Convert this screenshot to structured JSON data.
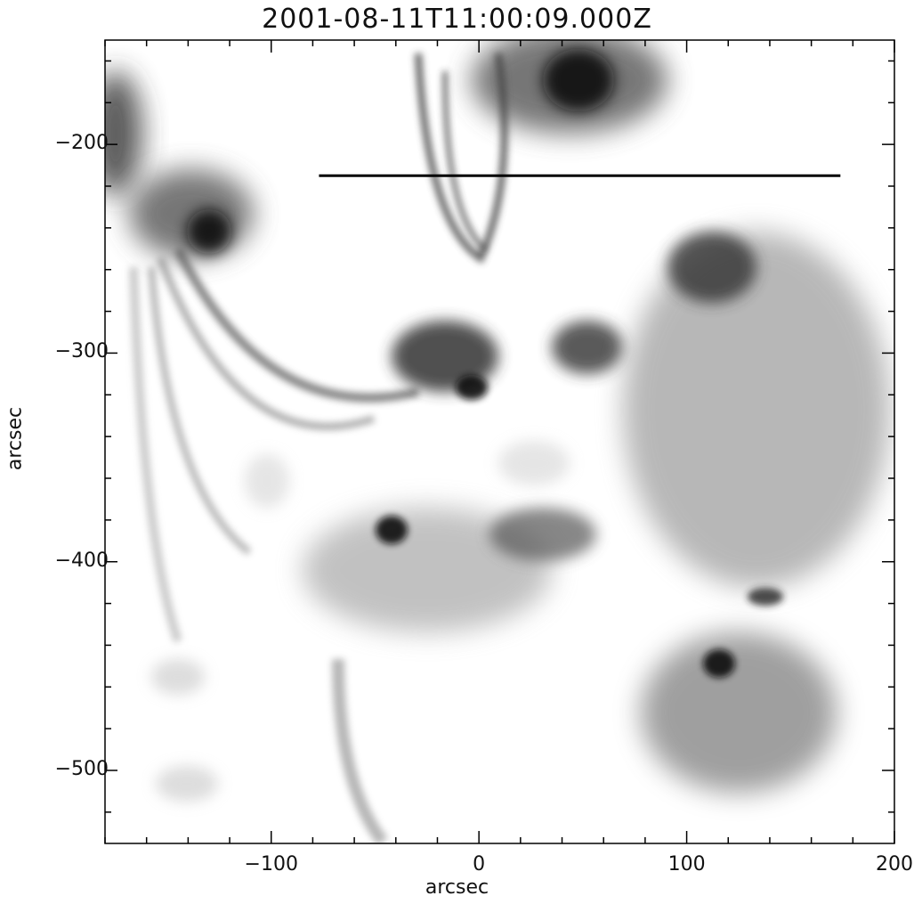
{
  "figure": {
    "title": "2001-08-11T11:00:09.000Z",
    "xlabel": "arcsec",
    "ylabel": "arcsec",
    "x_range": [
      -180,
      200
    ],
    "y_range": [
      -535,
      -150
    ],
    "x_ticks": [
      {
        "value": -100,
        "label": "−100"
      },
      {
        "value": 0,
        "label": "0"
      },
      {
        "value": 100,
        "label": "100"
      },
      {
        "value": 200,
        "label": "200"
      }
    ],
    "y_ticks": [
      {
        "value": -200,
        "label": "−200"
      },
      {
        "value": -300,
        "label": "−300"
      },
      {
        "value": -400,
        "label": "−400"
      },
      {
        "value": -500,
        "label": "−500"
      }
    ],
    "colormap": "inverted grayscale (dark = bright emission)",
    "slit_line": {
      "x_start": -77,
      "x_end": 174,
      "y": -215
    }
  }
}
